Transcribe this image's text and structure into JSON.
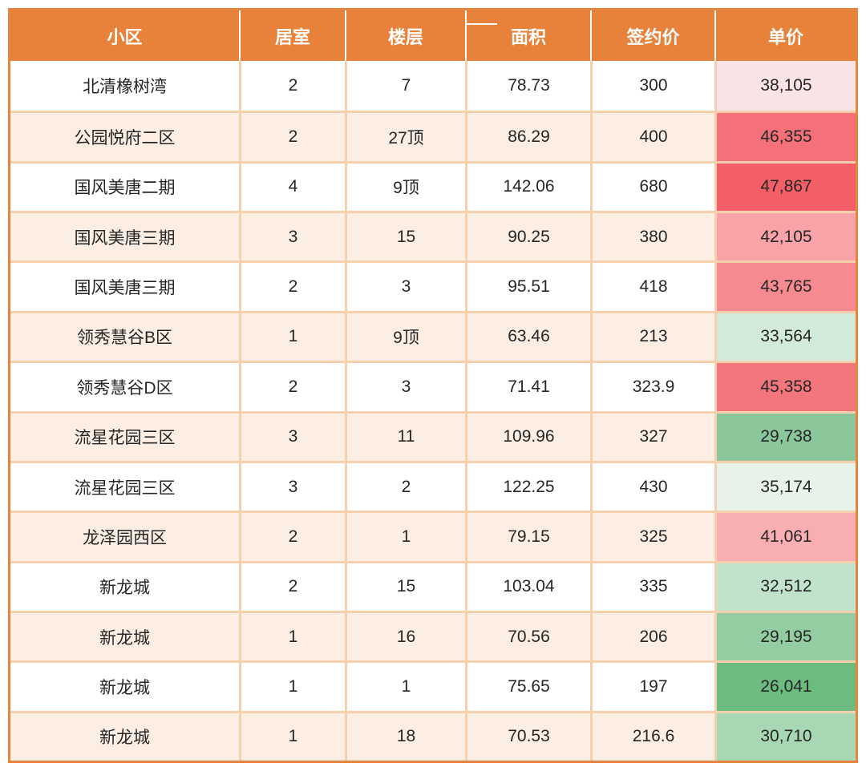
{
  "table": {
    "headers": [
      "小区",
      "居室",
      "楼层",
      "面积",
      "签约价",
      "单价"
    ],
    "rows": [
      {
        "community": "北清橡树湾",
        "rooms": "2",
        "floor": "7",
        "area": "78.73",
        "price": "300",
        "unit_price": "38,105",
        "unit_price_color": "#FAE3E5"
      },
      {
        "community": "公园悦府二区",
        "rooms": "2",
        "floor": "27顶",
        "area": "86.29",
        "price": "400",
        "unit_price": "46,355",
        "unit_price_color": "#F4717A"
      },
      {
        "community": "国风美唐二期",
        "rooms": "4",
        "floor": "9顶",
        "area": "142.06",
        "price": "680",
        "unit_price": "47,867",
        "unit_price_color": "#F45F67"
      },
      {
        "community": "国风美唐三期",
        "rooms": "3",
        "floor": "15",
        "area": "90.25",
        "price": "380",
        "unit_price": "42,105",
        "unit_price_color": "#F8A3A7"
      },
      {
        "community": "国风美唐三期",
        "rooms": "2",
        "floor": "3",
        "area": "95.51",
        "price": "418",
        "unit_price": "43,765",
        "unit_price_color": "#F58B90"
      },
      {
        "community": "领秀慧谷B区",
        "rooms": "1",
        "floor": "9顶",
        "area": "63.46",
        "price": "213",
        "unit_price": "33,564",
        "unit_price_color": "#D2EBD8"
      },
      {
        "community": "领秀慧谷D区",
        "rooms": "2",
        "floor": "3",
        "area": "71.41",
        "price": "323.9",
        "unit_price": "45,358",
        "unit_price_color": "#F4767D"
      },
      {
        "community": "流星花园三区",
        "rooms": "3",
        "floor": "11",
        "area": "109.96",
        "price": "327",
        "unit_price": "29,738",
        "unit_price_color": "#8BC79A"
      },
      {
        "community": "流星花园三区",
        "rooms": "3",
        "floor": "2",
        "area": "122.25",
        "price": "430",
        "unit_price": "35,174",
        "unit_price_color": "#E7F3EA"
      },
      {
        "community": "龙泽园西区",
        "rooms": "2",
        "floor": "1",
        "area": "79.15",
        "price": "325",
        "unit_price": "41,061",
        "unit_price_color": "#F9AFB2"
      },
      {
        "community": "新龙城",
        "rooms": "2",
        "floor": "15",
        "area": "103.04",
        "price": "335",
        "unit_price": "32,512",
        "unit_price_color": "#C1E3CB"
      },
      {
        "community": "新龙城",
        "rooms": "1",
        "floor": "16",
        "area": "70.56",
        "price": "206",
        "unit_price": "29,195",
        "unit_price_color": "#93CDA1"
      },
      {
        "community": "新龙城",
        "rooms": "1",
        "floor": "1",
        "area": "75.65",
        "price": "197",
        "unit_price": "26,041",
        "unit_price_color": "#6BBC7E"
      },
      {
        "community": "新龙城",
        "rooms": "1",
        "floor": "18",
        "area": "70.53",
        "price": "216.6",
        "unit_price": "30,710",
        "unit_price_color": "#A7D8B3"
      }
    ]
  },
  "colors": {
    "header_bg": "#E8813A",
    "outer_border": "#E58540",
    "grid_line": "#F6D0AC",
    "row_peach": "#FCEEE2",
    "row_white": "#FFFFFF",
    "header_text": "#FFFFFF",
    "body_text": "#262626",
    "heat_max_red": "#F45F67",
    "heat_min_green": "#6BBC7E"
  },
  "chart_data": {
    "type": "table",
    "title": "",
    "columns": [
      "小区",
      "居室",
      "楼层",
      "面积",
      "签约价",
      "单价"
    ],
    "rows": [
      [
        "北清橡树湾",
        2,
        "7",
        78.73,
        300,
        38105
      ],
      [
        "公园悦府二区",
        2,
        "27顶",
        86.29,
        400,
        46355
      ],
      [
        "国风美唐二期",
        4,
        "9顶",
        142.06,
        680,
        47867
      ],
      [
        "国风美唐三期",
        3,
        "15",
        90.25,
        380,
        42105
      ],
      [
        "国风美唐三期",
        2,
        "3",
        95.51,
        418,
        43765
      ],
      [
        "领秀慧谷B区",
        1,
        "9顶",
        63.46,
        213,
        33564
      ],
      [
        "领秀慧谷D区",
        2,
        "3",
        71.41,
        323.9,
        45358
      ],
      [
        "流星花园三区",
        3,
        "11",
        109.96,
        327,
        29738
      ],
      [
        "流星花园三区",
        3,
        "2",
        122.25,
        430,
        35174
      ],
      [
        "龙泽园西区",
        2,
        "1",
        79.15,
        325,
        41061
      ],
      [
        "新龙城",
        2,
        "15",
        103.04,
        335,
        32512
      ],
      [
        "新龙城",
        1,
        "16",
        70.56,
        206,
        29195
      ],
      [
        "新龙城",
        1,
        "1",
        75.65,
        197,
        26041
      ],
      [
        "新龙城",
        1,
        "18",
        70.53,
        216.6,
        30710
      ]
    ],
    "notes": "单价 column uses a red(high)-to-green(low) color scale; min 26041, max 47867"
  }
}
